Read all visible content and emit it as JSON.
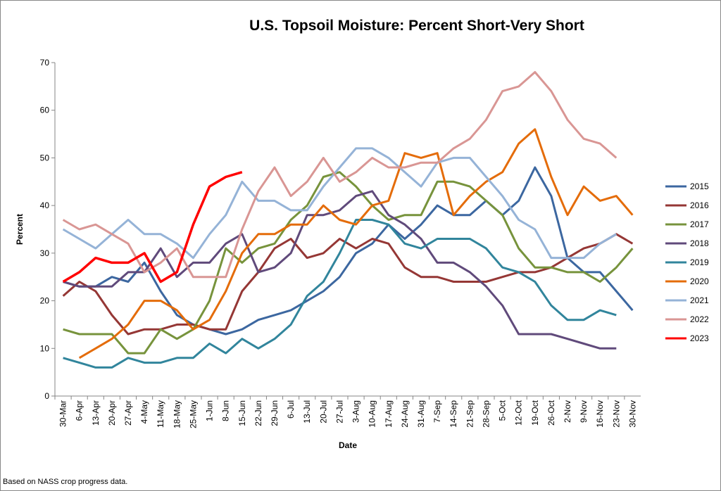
{
  "chart_data": {
    "type": "line",
    "title": "U.S. Topsoil Moisture: Percent Short-Very Short",
    "x_label": "Date",
    "y_label": "Percent",
    "note": "Based on NASS crop progress data.",
    "categories": [
      "30-Mar",
      "6-Apr",
      "13-Apr",
      "20-Apr",
      "27-Apr",
      "4-May",
      "11-May",
      "18-May",
      "25-May",
      "1-Jun",
      "8-Jun",
      "15-Jun",
      "22-Jun",
      "29-Jun",
      "6-Jul",
      "13-Jul",
      "20-Jul",
      "27-Jul",
      "3-Aug",
      "10-Aug",
      "17-Aug",
      "24-Aug",
      "31-Aug",
      "7-Sep",
      "14-Sep",
      "21-Sep",
      "28-Sep",
      "5-Oct",
      "12-Oct",
      "19-Oct",
      "26-Oct",
      "2-Nov",
      "9-Nov",
      "16-Nov",
      "23-Nov",
      "30-Nov"
    ],
    "ylim": [
      0,
      70
    ],
    "yticks": [
      0,
      10,
      20,
      30,
      40,
      50,
      60,
      70
    ],
    "legend": "right",
    "series": [
      {
        "name": "2015",
        "color": "#3c67a0",
        "values": [
          24,
          23,
          23,
          25,
          24,
          28,
          22,
          17,
          15,
          14,
          13,
          14,
          16,
          17,
          18,
          20,
          22,
          25,
          30,
          32,
          36,
          33,
          36,
          40,
          38,
          38,
          41,
          38,
          41,
          48,
          42,
          29,
          26,
          26,
          22,
          18
        ]
      },
      {
        "name": "2016",
        "color": "#953735",
        "values": [
          21,
          24,
          22,
          17,
          13,
          14,
          14,
          15,
          15,
          14,
          14,
          22,
          26,
          31,
          33,
          29,
          30,
          33,
          31,
          33,
          32,
          27,
          25,
          25,
          24,
          24,
          24,
          25,
          26,
          26,
          27,
          29,
          31,
          32,
          34,
          32
        ]
      },
      {
        "name": "2017",
        "color": "#77933c",
        "values": [
          14,
          13,
          13,
          13,
          9,
          9,
          14,
          12,
          14,
          20,
          31,
          28,
          31,
          32,
          37,
          40,
          46,
          47,
          44,
          40,
          37,
          38,
          38,
          45,
          45,
          44,
          41,
          38,
          31,
          27,
          27,
          26,
          26,
          24,
          27,
          31
        ]
      },
      {
        "name": "2018",
        "color": "#604a7b",
        "values": [
          24,
          23,
          23,
          23,
          26,
          26,
          31,
          25,
          28,
          28,
          32,
          34,
          26,
          27,
          30,
          38,
          38,
          39,
          42,
          43,
          38,
          36,
          33,
          28,
          28,
          26,
          23,
          19,
          13,
          13,
          13,
          12,
          11,
          10,
          10,
          null
        ]
      },
      {
        "name": "2019",
        "color": "#31859c",
        "values": [
          8,
          7,
          6,
          6,
          8,
          7,
          7,
          8,
          8,
          11,
          9,
          12,
          10,
          12,
          15,
          21,
          24,
          30,
          37,
          37,
          36,
          32,
          31,
          33,
          33,
          33,
          31,
          27,
          26,
          24,
          19,
          16,
          16,
          18,
          17,
          null
        ]
      },
      {
        "name": "2020",
        "color": "#e46c0a",
        "values": [
          null,
          8,
          10,
          12,
          15,
          20,
          20,
          18,
          14,
          16,
          22,
          30,
          34,
          34,
          36,
          36,
          40,
          37,
          36,
          40,
          41,
          51,
          50,
          51,
          38,
          42,
          45,
          47,
          53,
          56,
          46,
          38,
          44,
          41,
          42,
          38
        ]
      },
      {
        "name": "2021",
        "color": "#95b3d7",
        "values": [
          35,
          33,
          31,
          34,
          37,
          34,
          34,
          32,
          29,
          34,
          38,
          45,
          41,
          41,
          39,
          39,
          44,
          48,
          52,
          52,
          50,
          47,
          44,
          49,
          50,
          50,
          46,
          42,
          37,
          35,
          29,
          29,
          29,
          32,
          34,
          null
        ]
      },
      {
        "name": "2022",
        "color": "#d99694",
        "values": [
          37,
          35,
          36,
          34,
          32,
          26,
          28,
          31,
          25,
          25,
          25,
          35,
          43,
          48,
          42,
          45,
          50,
          45,
          47,
          50,
          48,
          48,
          49,
          49,
          52,
          54,
          58,
          64,
          65,
          68,
          64,
          58,
          54,
          53,
          50,
          null
        ]
      },
      {
        "name": "2023",
        "color": "#ff0000",
        "values": [
          24,
          26,
          29,
          28,
          28,
          30,
          24,
          26,
          36,
          44,
          46,
          47,
          null,
          null,
          null,
          null,
          null,
          null,
          null,
          null,
          null,
          null,
          null,
          null,
          null,
          null,
          null,
          null,
          null,
          null,
          null,
          null,
          null,
          null,
          null,
          null
        ]
      }
    ]
  }
}
